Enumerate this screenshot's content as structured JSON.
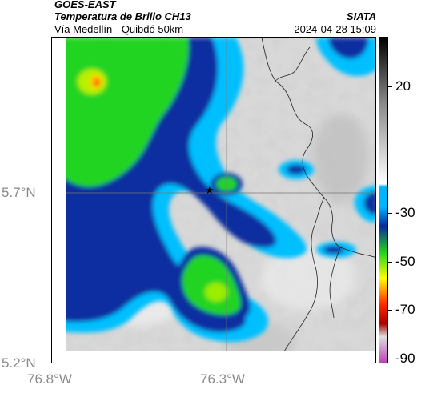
{
  "header": {
    "satellite": "GOES-EAST",
    "product": "Temperatura de Brillo CH13",
    "region": "Vía Medellín - Quibdó 50km",
    "agency": "SIATA",
    "timestamp": "2024-04-28 15:09"
  },
  "map": {
    "x_ticks": [
      "76.8°W",
      "76.3°W"
    ],
    "y_ticks": [
      "5.7°N",
      "5.2°N"
    ],
    "marker_icon": "star-icon"
  },
  "colorbar": {
    "labels": [
      "20",
      "-30",
      "-50",
      "-70",
      "-90"
    ],
    "colors": [
      "#000000",
      "#ffffff",
      "#00b4ff",
      "#0a2a9a",
      "#1fd21f",
      "#ffff00",
      "#ff2a00",
      "#aa0000",
      "#bb44bb"
    ]
  }
}
